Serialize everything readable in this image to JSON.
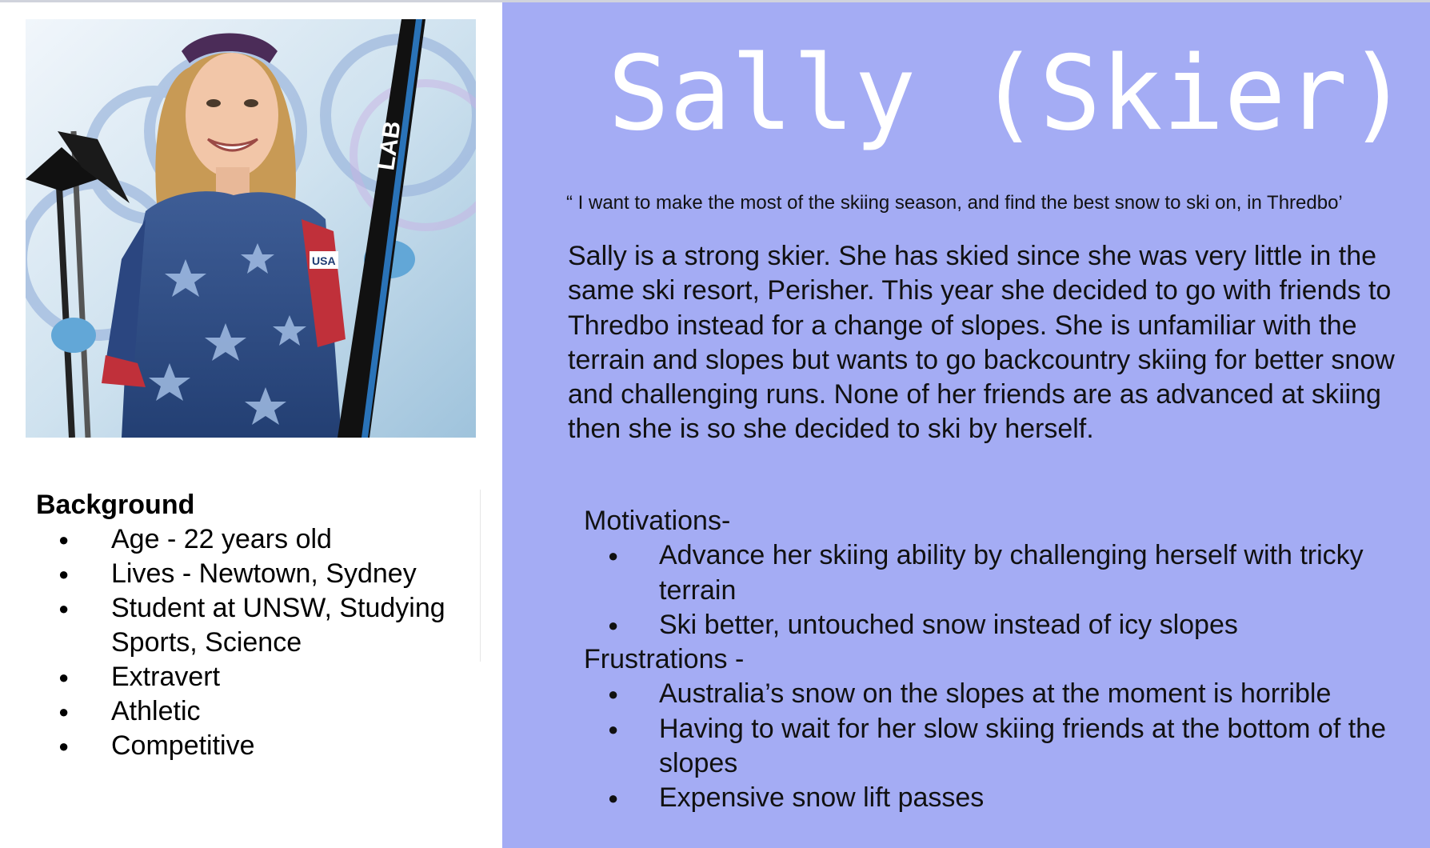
{
  "colors": {
    "panel": "#a4acf4",
    "title": "#ffffff",
    "text": "#111111"
  },
  "photo": {
    "icon": "skier-portrait-image",
    "ski_brand": "LAB"
  },
  "background": {
    "heading": "Background",
    "items": [
      "Age - 22 years old",
      "Lives - Newtown, Sydney",
      "Student at UNSW, Studying Sports, Science",
      "Extravert",
      "Athletic",
      "Competitive"
    ]
  },
  "persona": {
    "title": "Sally (Skier)",
    "quote": "“ I want to make the most of the skiing season, and find the best snow to ski on, in Thredbo’",
    "description": "Sally is a strong skier. She has skied since she was very little in the same ski resort, Perisher. This year she decided to go with friends to Thredbo instead for a change of slopes. She is unfamiliar with the terrain and slopes but wants to go backcountry skiing for better snow and challenging runs. None of her friends are as advanced at skiing then she is so she decided to ski by herself."
  },
  "motivations": {
    "heading": "Motivations-",
    "items": [
      "Advance her skiing ability by challenging herself with tricky terrain",
      "Ski better, untouched snow instead of  icy slopes"
    ]
  },
  "frustrations": {
    "heading": "Frustrations -",
    "items": [
      "Australia’s snow on the slopes at the moment is horrible",
      "Having to wait for her slow skiing friends at the bottom of the slopes",
      "Expensive snow lift passes"
    ]
  }
}
